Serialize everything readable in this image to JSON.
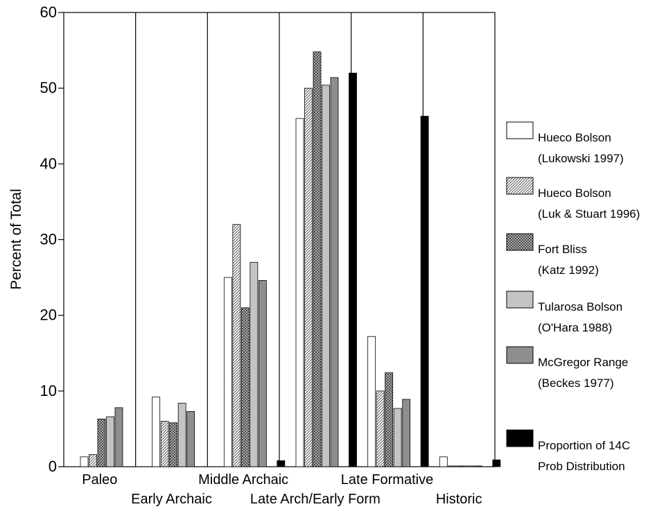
{
  "chart_data": {
    "type": "bar",
    "ylabel": "Percent of Total",
    "xlabel": "",
    "ylim": [
      0,
      60
    ],
    "yticks": [
      "0",
      "10",
      "20",
      "30",
      "40",
      "50",
      "60"
    ],
    "categories": [
      "Paleo",
      "Early Archaic",
      "Middle Archaic",
      "Late Arch/Early Form",
      "Late Formative",
      "Historic"
    ],
    "series": [
      {
        "name": "Hueco Bolson (Lukowski 1997)",
        "pattern": "white",
        "values": [
          1.3,
          9.2,
          25.0,
          46.0,
          17.2,
          1.3
        ]
      },
      {
        "name": "Hueco Bolson (Luk & Stuart 1996)",
        "pattern": "hatch",
        "values": [
          1.6,
          6.0,
          32.0,
          50.0,
          10.0,
          0.1
        ]
      },
      {
        "name": "Fort Bliss (Katz 1992)",
        "pattern": "crosshatch",
        "values": [
          6.3,
          5.8,
          21.0,
          54.8,
          12.4,
          0.1
        ]
      },
      {
        "name": "Tularosa Bolson (O'Hara 1988)",
        "pattern": "lightgray",
        "values": [
          6.6,
          8.4,
          27.0,
          50.4,
          7.7,
          0.1
        ]
      },
      {
        "name": "McGregor Range (Beckes 1977)",
        "pattern": "darkgray",
        "values": [
          7.8,
          7.3,
          24.6,
          51.4,
          8.9,
          0.1
        ]
      },
      {
        "name": "Proportion of 14C Prob Distribution",
        "pattern": "black",
        "values": [
          0,
          0,
          0.8,
          52.0,
          46.3,
          0.9
        ]
      }
    ],
    "legend": [
      {
        "line1": "Hueco Bolson",
        "line2": "(Lukowski 1997)",
        "pattern": "white"
      },
      {
        "line1": "Hueco Bolson",
        "line2": "(Luk & Stuart 1996)",
        "pattern": "hatch"
      },
      {
        "line1": "Fort Bliss",
        "line2": "(Katz 1992)",
        "pattern": "crosshatch"
      },
      {
        "line1": "Tularosa Bolson",
        "line2": "(O'Hara 1988)",
        "pattern": "lightgray"
      },
      {
        "line1": "McGregor Range",
        "line2": "(Beckes 1977)",
        "pattern": "darkgray"
      },
      {
        "line1": "Proportion of 14C",
        "line2": "Prob Distribution",
        "pattern": "black"
      }
    ],
    "legend_position": "right",
    "grid": false
  }
}
